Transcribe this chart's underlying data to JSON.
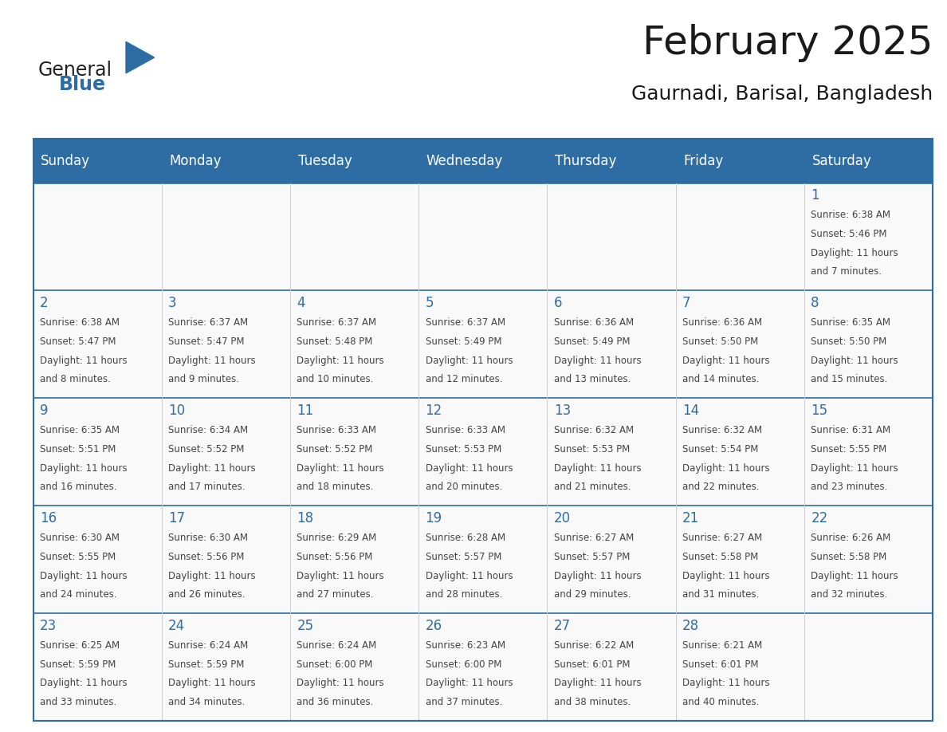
{
  "title": "February 2025",
  "subtitle": "Gaurnadi, Barisal, Bangladesh",
  "days_of_week": [
    "Sunday",
    "Monday",
    "Tuesday",
    "Wednesday",
    "Thursday",
    "Friday",
    "Saturday"
  ],
  "header_bg": "#2e6da4",
  "header_text": "#ffffff",
  "cell_bg": "#f9f9f9",
  "border_color": "#2e6da4",
  "grid_color": "#cccccc",
  "text_color": "#444444",
  "day_number_color": "#2e6da4",
  "title_color": "#1a1a1a",
  "weeks": [
    [
      null,
      null,
      null,
      null,
      null,
      null,
      {
        "day": 1,
        "sunrise": "6:38 AM",
        "sunset": "5:46 PM",
        "daylight": "11 hours",
        "daylight2": "and 7 minutes."
      }
    ],
    [
      {
        "day": 2,
        "sunrise": "6:38 AM",
        "sunset": "5:47 PM",
        "daylight": "11 hours",
        "daylight2": "and 8 minutes."
      },
      {
        "day": 3,
        "sunrise": "6:37 AM",
        "sunset": "5:47 PM",
        "daylight": "11 hours",
        "daylight2": "and 9 minutes."
      },
      {
        "day": 4,
        "sunrise": "6:37 AM",
        "sunset": "5:48 PM",
        "daylight": "11 hours",
        "daylight2": "and 10 minutes."
      },
      {
        "day": 5,
        "sunrise": "6:37 AM",
        "sunset": "5:49 PM",
        "daylight": "11 hours",
        "daylight2": "and 12 minutes."
      },
      {
        "day": 6,
        "sunrise": "6:36 AM",
        "sunset": "5:49 PM",
        "daylight": "11 hours",
        "daylight2": "and 13 minutes."
      },
      {
        "day": 7,
        "sunrise": "6:36 AM",
        "sunset": "5:50 PM",
        "daylight": "11 hours",
        "daylight2": "and 14 minutes."
      },
      {
        "day": 8,
        "sunrise": "6:35 AM",
        "sunset": "5:50 PM",
        "daylight": "11 hours",
        "daylight2": "and 15 minutes."
      }
    ],
    [
      {
        "day": 9,
        "sunrise": "6:35 AM",
        "sunset": "5:51 PM",
        "daylight": "11 hours",
        "daylight2": "and 16 minutes."
      },
      {
        "day": 10,
        "sunrise": "6:34 AM",
        "sunset": "5:52 PM",
        "daylight": "11 hours",
        "daylight2": "and 17 minutes."
      },
      {
        "day": 11,
        "sunrise": "6:33 AM",
        "sunset": "5:52 PM",
        "daylight": "11 hours",
        "daylight2": "and 18 minutes."
      },
      {
        "day": 12,
        "sunrise": "6:33 AM",
        "sunset": "5:53 PM",
        "daylight": "11 hours",
        "daylight2": "and 20 minutes."
      },
      {
        "day": 13,
        "sunrise": "6:32 AM",
        "sunset": "5:53 PM",
        "daylight": "11 hours",
        "daylight2": "and 21 minutes."
      },
      {
        "day": 14,
        "sunrise": "6:32 AM",
        "sunset": "5:54 PM",
        "daylight": "11 hours",
        "daylight2": "and 22 minutes."
      },
      {
        "day": 15,
        "sunrise": "6:31 AM",
        "sunset": "5:55 PM",
        "daylight": "11 hours",
        "daylight2": "and 23 minutes."
      }
    ],
    [
      {
        "day": 16,
        "sunrise": "6:30 AM",
        "sunset": "5:55 PM",
        "daylight": "11 hours",
        "daylight2": "and 24 minutes."
      },
      {
        "day": 17,
        "sunrise": "6:30 AM",
        "sunset": "5:56 PM",
        "daylight": "11 hours",
        "daylight2": "and 26 minutes."
      },
      {
        "day": 18,
        "sunrise": "6:29 AM",
        "sunset": "5:56 PM",
        "daylight": "11 hours",
        "daylight2": "and 27 minutes."
      },
      {
        "day": 19,
        "sunrise": "6:28 AM",
        "sunset": "5:57 PM",
        "daylight": "11 hours",
        "daylight2": "and 28 minutes."
      },
      {
        "day": 20,
        "sunrise": "6:27 AM",
        "sunset": "5:57 PM",
        "daylight": "11 hours",
        "daylight2": "and 29 minutes."
      },
      {
        "day": 21,
        "sunrise": "6:27 AM",
        "sunset": "5:58 PM",
        "daylight": "11 hours",
        "daylight2": "and 31 minutes."
      },
      {
        "day": 22,
        "sunrise": "6:26 AM",
        "sunset": "5:58 PM",
        "daylight": "11 hours",
        "daylight2": "and 32 minutes."
      }
    ],
    [
      {
        "day": 23,
        "sunrise": "6:25 AM",
        "sunset": "5:59 PM",
        "daylight": "11 hours",
        "daylight2": "and 33 minutes."
      },
      {
        "day": 24,
        "sunrise": "6:24 AM",
        "sunset": "5:59 PM",
        "daylight": "11 hours",
        "daylight2": "and 34 minutes."
      },
      {
        "day": 25,
        "sunrise": "6:24 AM",
        "sunset": "6:00 PM",
        "daylight": "11 hours",
        "daylight2": "and 36 minutes."
      },
      {
        "day": 26,
        "sunrise": "6:23 AM",
        "sunset": "6:00 PM",
        "daylight": "11 hours",
        "daylight2": "and 37 minutes."
      },
      {
        "day": 27,
        "sunrise": "6:22 AM",
        "sunset": "6:01 PM",
        "daylight": "11 hours",
        "daylight2": "and 38 minutes."
      },
      {
        "day": 28,
        "sunrise": "6:21 AM",
        "sunset": "6:01 PM",
        "daylight": "11 hours",
        "daylight2": "and 40 minutes."
      },
      null
    ]
  ],
  "logo_text_general": "General",
  "logo_text_blue": "Blue",
  "logo_color_general": "#222222",
  "logo_color_blue": "#2e6da4",
  "title_fontsize": 36,
  "subtitle_fontsize": 18,
  "header_fontsize": 12,
  "day_num_fontsize": 12,
  "cell_text_fontsize": 8.5
}
